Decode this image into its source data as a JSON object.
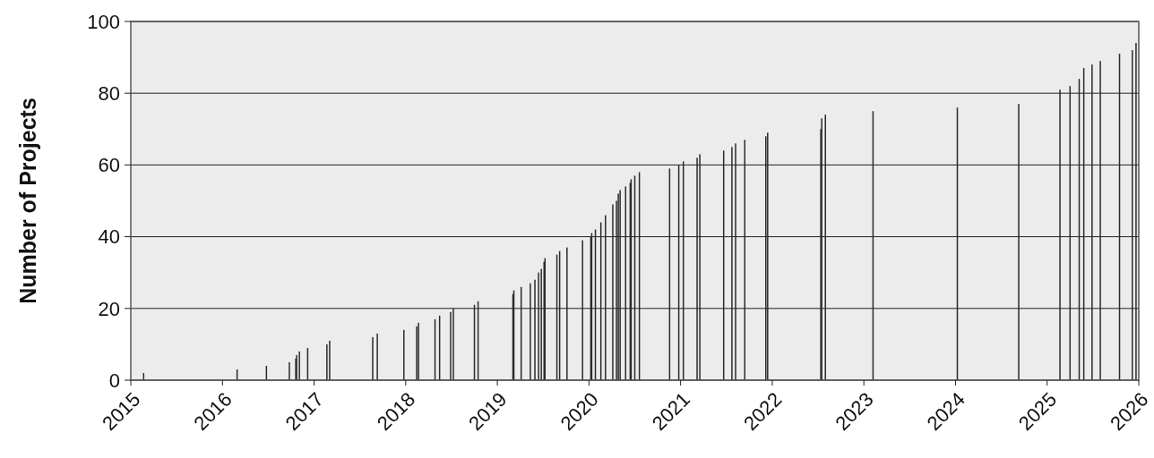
{
  "chart_data": {
    "type": "bar",
    "ylabel": "Number of Projects",
    "color": "#2b2b2b",
    "grid": "y",
    "x": [
      2015.14,
      2016.16,
      2016.48,
      2016.73,
      2016.8,
      2016.81,
      2016.84,
      2016.93,
      2017.14,
      2017.17,
      2017.64,
      2017.69,
      2017.98,
      2018.12,
      2018.14,
      2018.32,
      2018.37,
      2018.49,
      2018.52,
      2018.75,
      2018.79,
      2019.17,
      2019.18,
      2019.26,
      2019.36,
      2019.41,
      2019.45,
      2019.48,
      2019.51,
      2019.52,
      2019.65,
      2019.68,
      2019.76,
      2019.93,
      2020.02,
      2020.03,
      2020.07,
      2020.13,
      2020.18,
      2020.26,
      2020.3,
      2020.32,
      2020.34,
      2020.4,
      2020.45,
      2020.46,
      2020.5,
      2020.55,
      2020.88,
      2020.98,
      2021.03,
      2021.18,
      2021.21,
      2021.47,
      2021.56,
      2021.6,
      2021.7,
      2021.93,
      2021.95,
      2022.53,
      2022.54,
      2022.58,
      2023.1,
      2024.02,
      2024.69,
      2025.14,
      2025.25,
      2025.35,
      2025.4,
      2025.49,
      2025.58,
      2025.79,
      2025.93,
      2025.97
    ],
    "values": [
      2,
      3,
      4,
      5,
      6,
      7,
      8,
      9,
      10,
      11,
      12,
      13,
      14,
      15,
      16,
      17,
      18,
      19,
      20,
      21,
      22,
      24,
      25,
      26,
      27,
      28,
      30,
      31,
      33,
      34,
      35,
      36,
      37,
      39,
      40,
      41,
      42,
      44,
      46,
      49,
      50,
      52,
      53,
      54,
      55,
      56,
      57,
      58,
      59,
      60,
      61,
      62,
      63,
      64,
      65,
      66,
      67,
      68,
      69,
      70,
      73,
      74,
      75,
      76,
      77,
      81,
      82,
      84,
      87,
      88,
      89,
      91,
      92,
      94
    ],
    "xlim": [
      2015,
      2026
    ],
    "xticks": [
      2015,
      2016,
      2017,
      2018,
      2019,
      2020,
      2021,
      2022,
      2023,
      2024,
      2025,
      2026
    ],
    "ylim": [
      0,
      100
    ],
    "yticks": [
      0,
      20,
      40,
      60,
      80,
      100
    ]
  }
}
